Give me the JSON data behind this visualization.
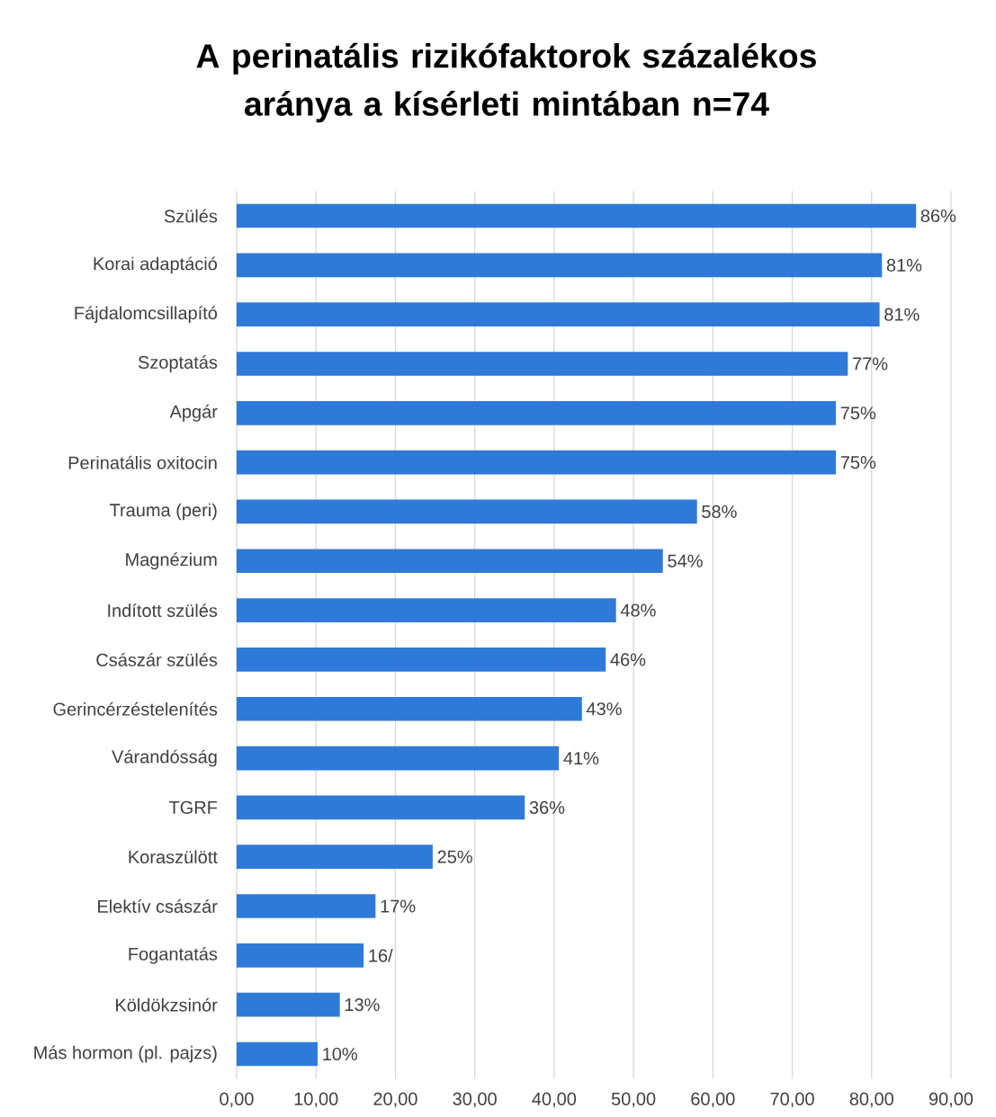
{
  "chart_data": {
    "type": "bar",
    "orientation": "horizontal",
    "title": "A perinatális rizikófaktorok százalékos aránya a kísérleti mintában n=74",
    "categories": [
      "Szülés",
      "Korai adaptáció",
      "Fájdalomcsillapító",
      "Szoptatás",
      "Apgár",
      "Perinatális oxitocin",
      "Trauma (peri)",
      "Magnézium",
      "Indított szülés",
      "Császár szülés",
      "Gerincérzéstelenítés",
      "Várandósság",
      "TGRF",
      "Koraszülött",
      "Elektív császár",
      "Fogantatás",
      "Köldökzsinór",
      "Más hormon (pl. pajzs)"
    ],
    "values": [
      85.6,
      81.3,
      81.0,
      77.0,
      75.5,
      75.5,
      58.0,
      53.7,
      47.8,
      46.5,
      43.5,
      40.6,
      36.3,
      24.7,
      17.5,
      16.0,
      13.0,
      10.2
    ],
    "value_labels": [
      "86%",
      "81%",
      "81%",
      "77%",
      "75%",
      "75%",
      "58%",
      "54%",
      "48%",
      "46%",
      "43%",
      "41%",
      "36%",
      "25%",
      "17%",
      "16/",
      "13%",
      "10%"
    ],
    "color": "#2f7ad8",
    "xlim": [
      0,
      90
    ],
    "xticks": [
      {
        "value": 0,
        "label": "0,00"
      },
      {
        "value": 10,
        "label": "10,00"
      },
      {
        "value": 20,
        "label": "20,00"
      },
      {
        "value": 30,
        "label": "30,00"
      },
      {
        "value": 40,
        "label": "40,00"
      },
      {
        "value": 50,
        "label": "50,00"
      },
      {
        "value": 60,
        "label": "60,00"
      },
      {
        "value": 70,
        "label": "70,00"
      },
      {
        "value": 80,
        "label": "80,00"
      },
      {
        "value": 90,
        "label": "90,00"
      }
    ],
    "grid": "x"
  }
}
